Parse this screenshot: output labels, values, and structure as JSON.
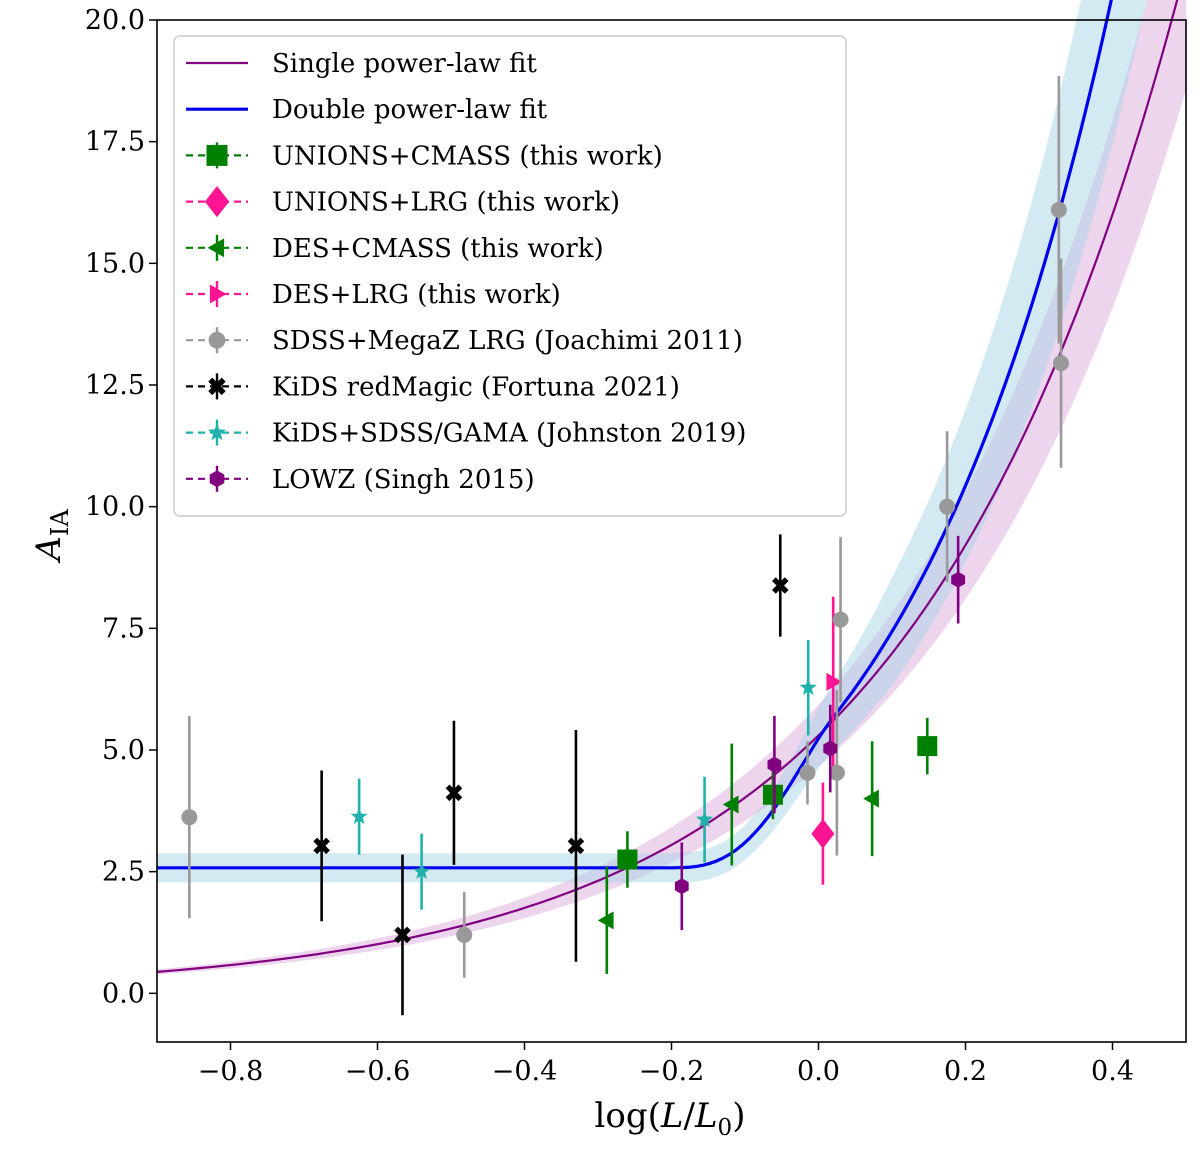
{
  "chart_data": {
    "type": "scatter",
    "xlabel": "log(L/L0)",
    "ylabel": "A_IA",
    "xlim": [
      -0.9,
      0.5
    ],
    "ylim": [
      -1.0,
      20.0
    ],
    "xticks": [
      -0.8,
      -0.6,
      -0.4,
      -0.2,
      0.0,
      0.2,
      0.4
    ],
    "xtick_labels": [
      "−0.8",
      "−0.6",
      "−0.4",
      "−0.2",
      "0.0",
      "0.2",
      "0.4"
    ],
    "yticks": [
      0.0,
      2.5,
      5.0,
      7.5,
      10.0,
      12.5,
      15.0,
      17.5,
      20.0
    ],
    "ytick_labels": [
      "0.0",
      "2.5",
      "5.0",
      "7.5",
      "10.0",
      "12.5",
      "15.0",
      "17.5",
      "20.0"
    ],
    "legend_position": "top-left",
    "fits": [
      {
        "name": "Single power-law fit",
        "color": "#800080",
        "band_color": "#d9a8d9",
        "model": "single",
        "A0": 5.3,
        "beta": 1.2,
        "band_frac_at_left": 0.12,
        "band_frac_at_right": 0.12
      },
      {
        "name": "Double power-law fit",
        "color": "#0000ee",
        "band_color": "#a6d4e6",
        "model": "double",
        "plateau": 2.58,
        "A0": 5.3,
        "beta": 1.47,
        "knee": -0.2,
        "band_halfwidth_plateau": 0.3,
        "band_frac_high": 0.15
      }
    ],
    "series": [
      {
        "name": "UNIONS+CMASS (this work)",
        "color": "#008000",
        "marker": "square",
        "points": [
          {
            "x": -0.26,
            "y": 2.75,
            "err": 0.58
          },
          {
            "x": -0.062,
            "y": 4.08,
            "err": 0.5
          },
          {
            "x": 0.148,
            "y": 5.08,
            "err": 0.58
          }
        ]
      },
      {
        "name": "UNIONS+LRG (this work)",
        "color": "#ff1493",
        "marker": "diamond",
        "points": [
          {
            "x": 0.006,
            "y": 3.28,
            "err": 1.05
          }
        ]
      },
      {
        "name": "DES+CMASS (this work)",
        "color": "#008000",
        "marker": "triangle-left",
        "points": [
          {
            "x": -0.288,
            "y": 1.5,
            "err": 1.1
          },
          {
            "x": -0.118,
            "y": 3.88,
            "err": 1.25
          },
          {
            "x": 0.073,
            "y": 4.0,
            "err": 1.18
          }
        ]
      },
      {
        "name": "DES+LRG (this work)",
        "color": "#ff1493",
        "marker": "triangle-right",
        "points": [
          {
            "x": 0.02,
            "y": 6.4,
            "err": 1.75
          }
        ]
      },
      {
        "name": "SDSS+MegaZ LRG (Joachimi 2011)",
        "color": "#999999",
        "marker": "circle",
        "points": [
          {
            "x": -0.856,
            "y": 3.62,
            "err": 2.08
          },
          {
            "x": -0.482,
            "y": 1.2,
            "err": 0.88
          },
          {
            "x": -0.015,
            "y": 4.53,
            "err": 0.65
          },
          {
            "x": 0.025,
            "y": 4.53,
            "err": 1.7
          },
          {
            "x": 0.03,
            "y": 7.68,
            "err": 1.7
          },
          {
            "x": 0.175,
            "y": 10.0,
            "err": 1.55
          },
          {
            "x": 0.327,
            "y": 16.1,
            "err": 2.75
          },
          {
            "x": 0.33,
            "y": 12.95,
            "err": 2.15
          }
        ]
      },
      {
        "name": "KiDS redMagic (Fortuna 2021)",
        "color": "#000000",
        "marker": "x-filled",
        "points": [
          {
            "x": -0.676,
            "y": 3.03,
            "err": 1.55
          },
          {
            "x": -0.566,
            "y": 1.2,
            "err": 1.65
          },
          {
            "x": -0.496,
            "y": 4.12,
            "err": 1.48
          },
          {
            "x": -0.33,
            "y": 3.03,
            "err": 2.38
          },
          {
            "x": -0.052,
            "y": 8.38,
            "err": 1.05
          }
        ]
      },
      {
        "name": "KiDS+SDSS/GAMA (Johnston 2019)",
        "color": "#20b2aa",
        "marker": "star",
        "points": [
          {
            "x": -0.625,
            "y": 3.63,
            "err": 0.78
          },
          {
            "x": -0.54,
            "y": 2.5,
            "err": 0.78
          },
          {
            "x": -0.155,
            "y": 3.57,
            "err": 0.88
          },
          {
            "x": -0.014,
            "y": 6.28,
            "err": 0.98
          }
        ]
      },
      {
        "name": "LOWZ (Singh 2015)",
        "color": "#800080",
        "marker": "hexagon",
        "points": [
          {
            "x": -0.186,
            "y": 2.2,
            "err": 0.9
          },
          {
            "x": -0.06,
            "y": 4.7,
            "err": 1.0
          },
          {
            "x": 0.016,
            "y": 5.03,
            "err": 0.9
          },
          {
            "x": 0.19,
            "y": 8.5,
            "err": 0.9
          }
        ]
      }
    ],
    "legend": [
      {
        "label": "Single power-law fit",
        "kind": "line",
        "color": "#800080",
        "width": 2.2
      },
      {
        "label": "Double power-law fit",
        "kind": "line",
        "color": "#0000ee",
        "width": 3.2
      },
      {
        "label": "UNIONS+CMASS (this work)",
        "kind": "marker",
        "color": "#008000",
        "marker": "square"
      },
      {
        "label": "UNIONS+LRG (this work)",
        "kind": "marker",
        "color": "#ff1493",
        "marker": "diamond"
      },
      {
        "label": "DES+CMASS (this work)",
        "kind": "marker",
        "color": "#008000",
        "marker": "triangle-left"
      },
      {
        "label": "DES+LRG (this work)",
        "kind": "marker",
        "color": "#ff1493",
        "marker": "triangle-right"
      },
      {
        "label": "SDSS+MegaZ LRG (Joachimi 2011)",
        "kind": "marker",
        "color": "#999999",
        "marker": "circle"
      },
      {
        "label": "KiDS redMagic (Fortuna 2021)",
        "kind": "marker",
        "color": "#000000",
        "marker": "x-filled"
      },
      {
        "label": "KiDS+SDSS/GAMA (Johnston 2019)",
        "kind": "marker",
        "color": "#20b2aa",
        "marker": "star"
      },
      {
        "label": "LOWZ (Singh 2015)",
        "kind": "marker",
        "color": "#800080",
        "marker": "hexagon"
      }
    ]
  }
}
